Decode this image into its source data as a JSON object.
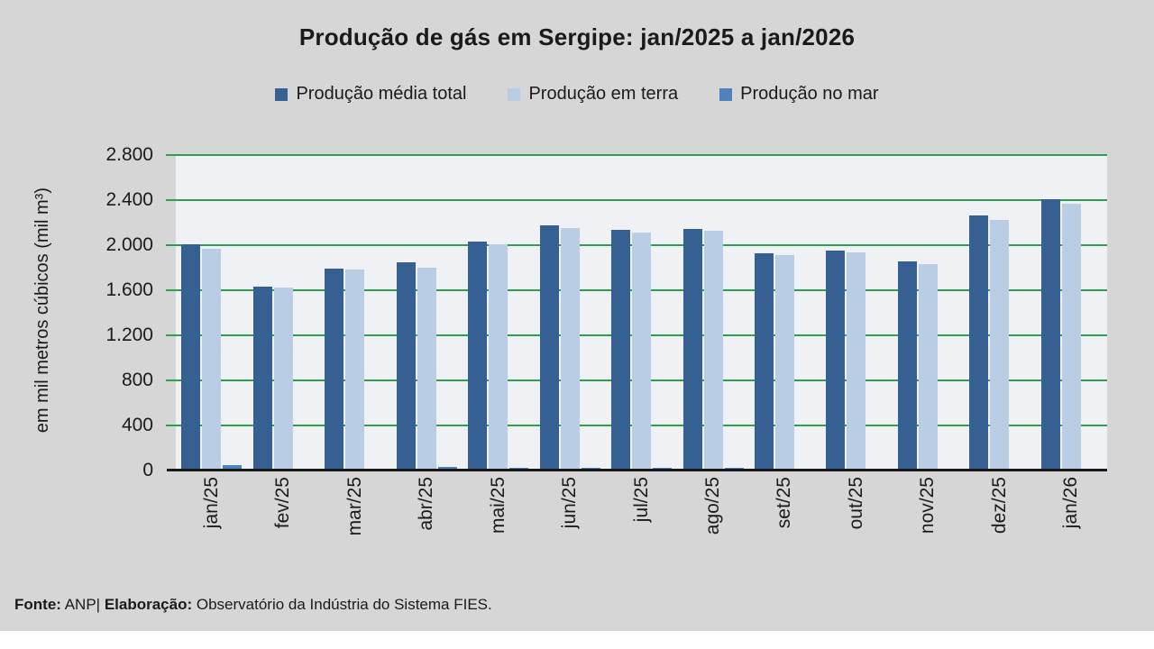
{
  "palette": {
    "background": "#d6d6d6",
    "plot_background": "#eff1f4",
    "gridline": "#2ba04f",
    "axis_line": "#1a1a1a",
    "series_total": "#366092",
    "series_terra": "#b9cde5",
    "series_mar": "#4f81bd"
  },
  "footer": {
    "fonte_label": "Fonte:",
    "fonte_text": " ANP| ",
    "elaboracao_label": "Elaboração:",
    "elaboracao_text": " Observatório da Indústria do Sistema FIES."
  },
  "chart_data": {
    "type": "bar",
    "title": "Produção de gás em Sergipe: jan/2025 a jan/2026",
    "xlabel": "",
    "ylabel": "em mil metros cúbicos (mil m³)",
    "ylim": [
      0,
      2800
    ],
    "grid": true,
    "legend_position": "top",
    "yticks": [
      {
        "v": 0,
        "label": "0"
      },
      {
        "v": 400,
        "label": "400"
      },
      {
        "v": 800,
        "label": "800"
      },
      {
        "v": 1200,
        "label": "1.200"
      },
      {
        "v": 1600,
        "label": "1.600"
      },
      {
        "v": 2000,
        "label": "2.000"
      },
      {
        "v": 2400,
        "label": "2.400"
      },
      {
        "v": 2800,
        "label": "2.800"
      }
    ],
    "categories": [
      "jan/25",
      "fev/25",
      "mar/25",
      "abr/25",
      "mai/25",
      "jun/25",
      "jul/25",
      "ago/25",
      "set/25",
      "out/25",
      "nov/25",
      "dez/25",
      "jan/26"
    ],
    "series": [
      {
        "name": "Produção média total",
        "color": "#366092",
        "values": [
          2010,
          1635,
          1795,
          1845,
          2030,
          2180,
          2140,
          2145,
          1930,
          1955,
          1855,
          2265,
          2405
        ]
      },
      {
        "name": "Produção em terra",
        "color": "#b9cde5",
        "values": [
          1965,
          1625,
          1785,
          1800,
          2005,
          2150,
          2110,
          2130,
          1910,
          1940,
          1830,
          2225,
          2370
        ]
      },
      {
        "name": "Produção no mar",
        "color": "#4f81bd",
        "values": [
          45,
          2,
          2,
          30,
          27,
          27,
          24,
          24,
          12,
          10,
          10,
          10,
          8
        ]
      }
    ]
  }
}
